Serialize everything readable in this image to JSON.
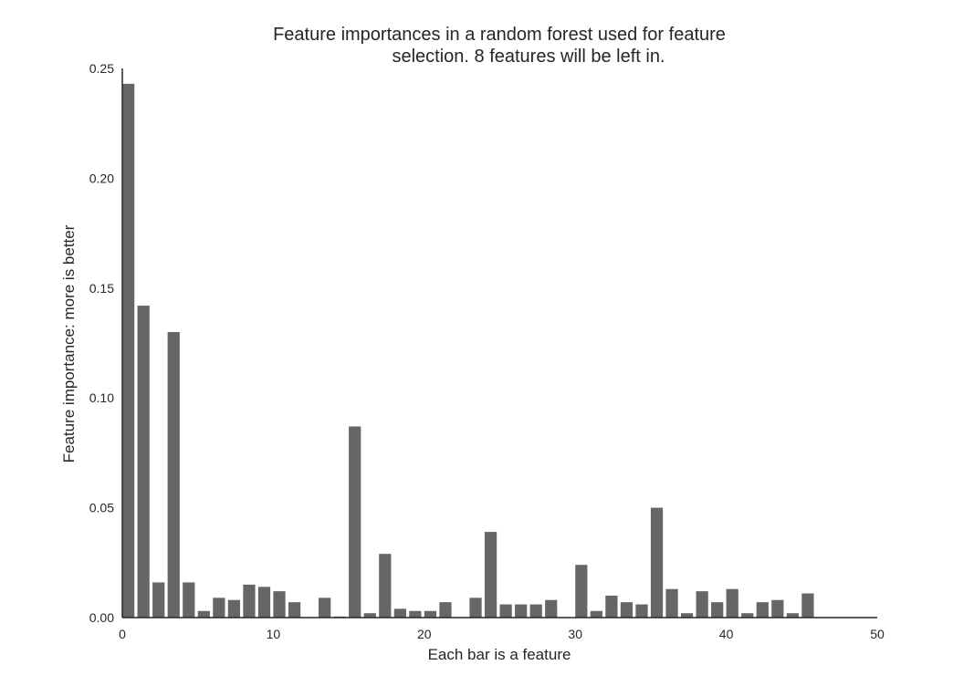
{
  "chart_data": {
    "type": "bar",
    "title_lines": [
      "Feature importances in a random forest used for feature",
      "selection. 8 features will be left in."
    ],
    "xlabel": "Each bar is a feature",
    "ylabel": "Feature importance: more is better",
    "xlim": [
      0,
      50
    ],
    "ylim": [
      0,
      0.25
    ],
    "xticks": [
      0,
      10,
      20,
      30,
      40,
      50
    ],
    "xtick_labels": [
      "0",
      "10",
      "20",
      "30",
      "40",
      "50"
    ],
    "yticks": [
      0,
      0.05,
      0.1,
      0.15,
      0.2,
      0.25
    ],
    "ytick_labels": [
      "0.00",
      "0.05",
      "0.10",
      "0.15",
      "0.20",
      "0.25"
    ],
    "grid": false,
    "bar_color": "#666666",
    "x": [
      0,
      1,
      2,
      3,
      4,
      5,
      6,
      7,
      8,
      9,
      10,
      11,
      12,
      13,
      14,
      15,
      16,
      17,
      18,
      19,
      20,
      21,
      22,
      23,
      24,
      25,
      26,
      27,
      28,
      29,
      30,
      31,
      32,
      33,
      34,
      35,
      36,
      37,
      38,
      39,
      40,
      41,
      42,
      43,
      44,
      45
    ],
    "values": [
      0.243,
      0.142,
      0.016,
      0.13,
      0.016,
      0.003,
      0.009,
      0.008,
      0.015,
      0.014,
      0.012,
      0.007,
      0.0,
      0.009,
      0.0005,
      0.087,
      0.002,
      0.029,
      0.004,
      0.003,
      0.003,
      0.007,
      0.0,
      0.009,
      0.039,
      0.006,
      0.006,
      0.006,
      0.008,
      0.0,
      0.024,
      0.003,
      0.01,
      0.007,
      0.006,
      0.05,
      0.013,
      0.002,
      0.012,
      0.007,
      0.013,
      0.002,
      0.007,
      0.008,
      0.002,
      0.011
    ]
  }
}
